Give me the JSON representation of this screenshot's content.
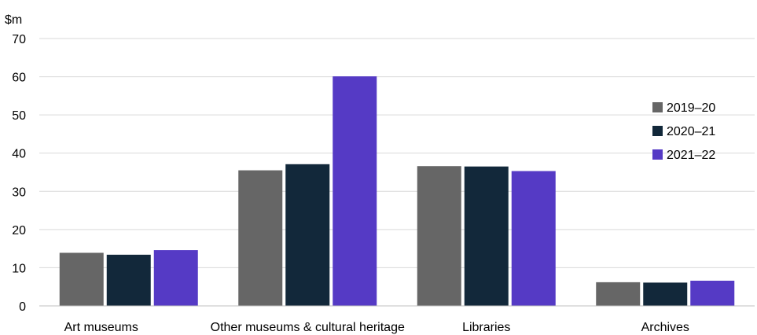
{
  "chart_data": {
    "type": "bar",
    "ylabel": "$m",
    "ylim": [
      0,
      70
    ],
    "yticks": [
      0,
      10,
      20,
      30,
      40,
      50,
      60,
      70
    ],
    "grid": true,
    "legend_position": "right",
    "categories": [
      "Art museums",
      "Other museums & cultural heritage",
      "Libraries",
      "Archives"
    ],
    "series": [
      {
        "name": "2019–20",
        "color": "#666666",
        "values": [
          13.9,
          35.5,
          36.6,
          6.2
        ]
      },
      {
        "name": "2020–21",
        "color": "#12283a",
        "values": [
          13.4,
          37.1,
          36.5,
          6.1
        ]
      },
      {
        "name": "2021–22",
        "color": "#553ac5",
        "values": [
          14.6,
          60.1,
          35.3,
          6.6
        ]
      }
    ]
  }
}
